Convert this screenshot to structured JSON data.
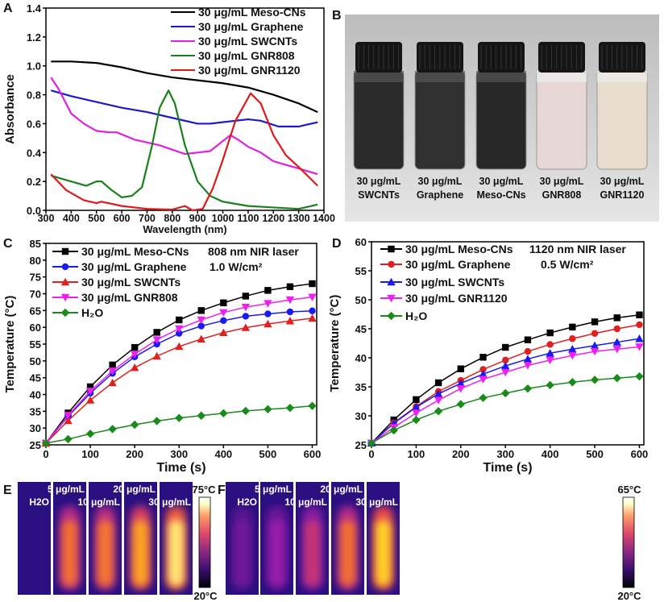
{
  "panels": {
    "a": "A",
    "b": "B",
    "c": "C",
    "d": "D",
    "e": "E",
    "f": "F"
  },
  "chart_data": [
    {
      "panel": "A",
      "type": "line",
      "xlabel": "Wavelength (nm)",
      "ylabel": "Absorbance",
      "xlim": [
        300,
        1400
      ],
      "ylim": [
        0,
        1.4
      ],
      "xticks": [
        300,
        400,
        500,
        600,
        700,
        800,
        900,
        1000,
        1100,
        1200,
        1300,
        1400
      ],
      "yticks": [
        "0.0",
        "0.2",
        "0.4",
        "0.6",
        "0.8",
        "1.0",
        "1.2",
        "1.4"
      ],
      "legend": "top-right",
      "series": [
        {
          "name": "30 μg/mL Meso-CNs",
          "color": "#000000",
          "points": [
            [
              320,
              1.03
            ],
            [
              400,
              1.03
            ],
            [
              500,
              1.02
            ],
            [
              600,
              0.99
            ],
            [
              700,
              0.95
            ],
            [
              800,
              0.92
            ],
            [
              900,
              0.9
            ],
            [
              1000,
              0.88
            ],
            [
              1100,
              0.85
            ],
            [
              1200,
              0.8
            ],
            [
              1300,
              0.74
            ],
            [
              1375,
              0.68
            ]
          ]
        },
        {
          "name": "30 μg/mL Graphene",
          "color": "#1a1acc",
          "points": [
            [
              320,
              0.83
            ],
            [
              400,
              0.79
            ],
            [
              500,
              0.75
            ],
            [
              600,
              0.71
            ],
            [
              700,
              0.68
            ],
            [
              800,
              0.64
            ],
            [
              900,
              0.6
            ],
            [
              950,
              0.6
            ],
            [
              1000,
              0.61
            ],
            [
              1100,
              0.63
            ],
            [
              1150,
              0.62
            ],
            [
              1220,
              0.58
            ],
            [
              1300,
              0.58
            ],
            [
              1375,
              0.61
            ]
          ]
        },
        {
          "name": "30 μg/mL SWCNTs",
          "color": "#e020e0",
          "points": [
            [
              320,
              0.92
            ],
            [
              350,
              0.84
            ],
            [
              400,
              0.67
            ],
            [
              450,
              0.6
            ],
            [
              500,
              0.55
            ],
            [
              550,
              0.54
            ],
            [
              580,
              0.54
            ],
            [
              650,
              0.49
            ],
            [
              750,
              0.45
            ],
            [
              850,
              0.39
            ],
            [
              900,
              0.4
            ],
            [
              950,
              0.41
            ],
            [
              1000,
              0.48
            ],
            [
              1030,
              0.52
            ],
            [
              1060,
              0.49
            ],
            [
              1100,
              0.44
            ],
            [
              1150,
              0.4
            ],
            [
              1200,
              0.34
            ],
            [
              1300,
              0.29
            ],
            [
              1375,
              0.25
            ]
          ]
        },
        {
          "name": "30 μg/mL GNR808",
          "color": "#1a801a",
          "points": [
            [
              320,
              0.24
            ],
            [
              400,
              0.2
            ],
            [
              460,
              0.17
            ],
            [
              500,
              0.2
            ],
            [
              520,
              0.2
            ],
            [
              560,
              0.14
            ],
            [
              600,
              0.09
            ],
            [
              640,
              0.1
            ],
            [
              680,
              0.16
            ],
            [
              720,
              0.45
            ],
            [
              750,
              0.71
            ],
            [
              785,
              0.83
            ],
            [
              810,
              0.74
            ],
            [
              850,
              0.45
            ],
            [
              900,
              0.2
            ],
            [
              950,
              0.1
            ],
            [
              1000,
              0.06
            ],
            [
              1100,
              0.03
            ],
            [
              1200,
              0.02
            ],
            [
              1300,
              0.01
            ],
            [
              1375,
              0.04
            ]
          ]
        },
        {
          "name": "30 μg/mL GNR1120",
          "color": "#dd1a1a",
          "points": [
            [
              320,
              0.25
            ],
            [
              380,
              0.14
            ],
            [
              450,
              0.07
            ],
            [
              500,
              0.05
            ],
            [
              520,
              0.06
            ],
            [
              600,
              0.03
            ],
            [
              700,
              0.01
            ],
            [
              800,
              0.005
            ],
            [
              850,
              0.03
            ],
            [
              880,
              0.0
            ],
            [
              920,
              0.01
            ],
            [
              960,
              0.15
            ],
            [
              1000,
              0.35
            ],
            [
              1050,
              0.62
            ],
            [
              1110,
              0.81
            ],
            [
              1150,
              0.74
            ],
            [
              1200,
              0.52
            ],
            [
              1250,
              0.38
            ],
            [
              1300,
              0.3
            ],
            [
              1375,
              0.17
            ]
          ]
        }
      ]
    },
    {
      "panel": "C",
      "type": "line",
      "xlabel": "Time (s)",
      "ylabel": "Temperature (°C)",
      "xlim": [
        0,
        610
      ],
      "ylim": [
        25,
        85
      ],
      "xticks": [
        0,
        100,
        200,
        300,
        400,
        500,
        600
      ],
      "yticks": [
        25,
        30,
        35,
        40,
        45,
        50,
        55,
        60,
        65,
        70,
        75,
        80,
        85
      ],
      "legend": "top-left",
      "annotation": [
        "808 nm NIR laser",
        "1.0 W/cm²"
      ],
      "x": [
        0,
        50,
        100,
        150,
        200,
        250,
        300,
        350,
        400,
        450,
        500,
        550,
        600
      ],
      "series": [
        {
          "name": "30 μg/mL Meso-CNs",
          "color": "#000000",
          "marker": "square",
          "values": [
            25.5,
            34.5,
            42.3,
            48.8,
            54,
            58.5,
            62.2,
            65,
            67.3,
            69.3,
            71,
            72.1,
            73
          ]
        },
        {
          "name": "30 μg/mL Graphene",
          "color": "#1a1aee",
          "marker": "circle",
          "values": [
            25.5,
            33.5,
            40.4,
            46.3,
            51.2,
            55,
            58.2,
            60.4,
            62,
            63.3,
            64,
            64.6,
            64.9
          ]
        },
        {
          "name": "30 μg/mL SWCNTs",
          "color": "#e02020",
          "marker": "triangle-up",
          "values": [
            25.5,
            32.2,
            38.3,
            43.5,
            48,
            51.4,
            54.3,
            56.5,
            58.4,
            59.9,
            61,
            61.9,
            62.7
          ]
        },
        {
          "name": "30 μg/mL GNR808",
          "color": "#ee20ee",
          "marker": "triangle-down",
          "values": [
            25.5,
            33.8,
            41,
            47,
            52,
            56.3,
            59.6,
            62.2,
            64.4,
            66,
            67.1,
            68.2,
            69
          ]
        },
        {
          "name": "H₂O",
          "color": "#1a8a1a",
          "marker": "diamond",
          "values": [
            25.5,
            26.7,
            28.3,
            29.7,
            31,
            32.1,
            33,
            33.7,
            34.4,
            35.1,
            35.6,
            36,
            36.6
          ]
        }
      ]
    },
    {
      "panel": "D",
      "type": "line",
      "xlabel": "Time (s)",
      "ylabel": "Temperature (°C)",
      "xlim": [
        0,
        610
      ],
      "ylim": [
        25,
        60
      ],
      "xticks": [
        0,
        100,
        200,
        300,
        400,
        500,
        600
      ],
      "yticks": [
        25,
        30,
        35,
        40,
        45,
        50,
        55,
        60
      ],
      "legend": "top-left",
      "annotation": [
        "1120 nm NIR laser",
        "0.5 W/cm²"
      ],
      "x": [
        0,
        50,
        100,
        150,
        200,
        250,
        300,
        350,
        400,
        450,
        500,
        550,
        600
      ],
      "series": [
        {
          "name": "30 μg/mL Meso-CNs",
          "color": "#000000",
          "marker": "square",
          "values": [
            25.3,
            29.3,
            32.8,
            35.7,
            38.1,
            40.1,
            41.8,
            43.1,
            44.3,
            45.3,
            46.2,
            46.9,
            47.4
          ]
        },
        {
          "name": "30 μg/mL Graphene",
          "color": "#e02020",
          "marker": "circle",
          "values": [
            25.3,
            28.8,
            31.6,
            34.2,
            36.1,
            38,
            39.6,
            41.1,
            42.3,
            43.3,
            44.2,
            45,
            45.7
          ]
        },
        {
          "name": "30 μg/mL SWCNTs",
          "color": "#1a1aee",
          "marker": "triangle-up",
          "values": [
            25.3,
            28.7,
            31.5,
            33.8,
            35.6,
            37.2,
            38.6,
            39.8,
            40.8,
            41.5,
            42.1,
            42.7,
            43.3
          ]
        },
        {
          "name": "30 μg/mL GNR1120",
          "color": "#ee20ee",
          "marker": "triangle-down",
          "values": [
            25.3,
            28,
            30.5,
            32.7,
            34.7,
            36.3,
            37.5,
            38.7,
            39.6,
            40.4,
            41.1,
            41.5,
            41.9
          ]
        },
        {
          "name": "H₂O",
          "color": "#1a8a1a",
          "marker": "diamond",
          "values": [
            25.3,
            27.5,
            29.3,
            30.8,
            32,
            33.1,
            33.9,
            34.7,
            35.3,
            35.8,
            36.2,
            36.5,
            36.8
          ]
        }
      ]
    }
  ],
  "photo": {
    "vials": [
      {
        "line1": "30 μg/mL",
        "line2": "SWCNTs",
        "liquid": "#2a2a2a"
      },
      {
        "line1": "30 μg/mL",
        "line2": "Graphene",
        "liquid": "#303030"
      },
      {
        "line1": "30 μg/mL",
        "line2": "Meso-CNs",
        "liquid": "#282828"
      },
      {
        "line1": "30 μg/mL",
        "line2": "GNR808",
        "liquid": "#e6d6d6"
      },
      {
        "line1": "30 μg/mL",
        "line2": "GNR1120",
        "liquid": "#e8dccd"
      }
    ]
  },
  "thermal": [
    {
      "panel": "E",
      "labels": [
        "H2O",
        "5 μg/mL",
        "10 μg/mL",
        "20 μg/mL",
        "30 μg/mL"
      ],
      "heat": [
        0,
        0.62,
        0.64,
        0.75,
        0.92
      ],
      "scale_max": "75°C",
      "scale_min": "20°C"
    },
    {
      "panel": "F",
      "labels": [
        "H2O",
        "5 μg/mL",
        "10 μg/mL",
        "20 μg/mL",
        "30 μg/mL"
      ],
      "heat": [
        0.2,
        0.3,
        0.42,
        0.62,
        0.85
      ],
      "scale_max": "65°C",
      "scale_min": "20°C"
    }
  ]
}
